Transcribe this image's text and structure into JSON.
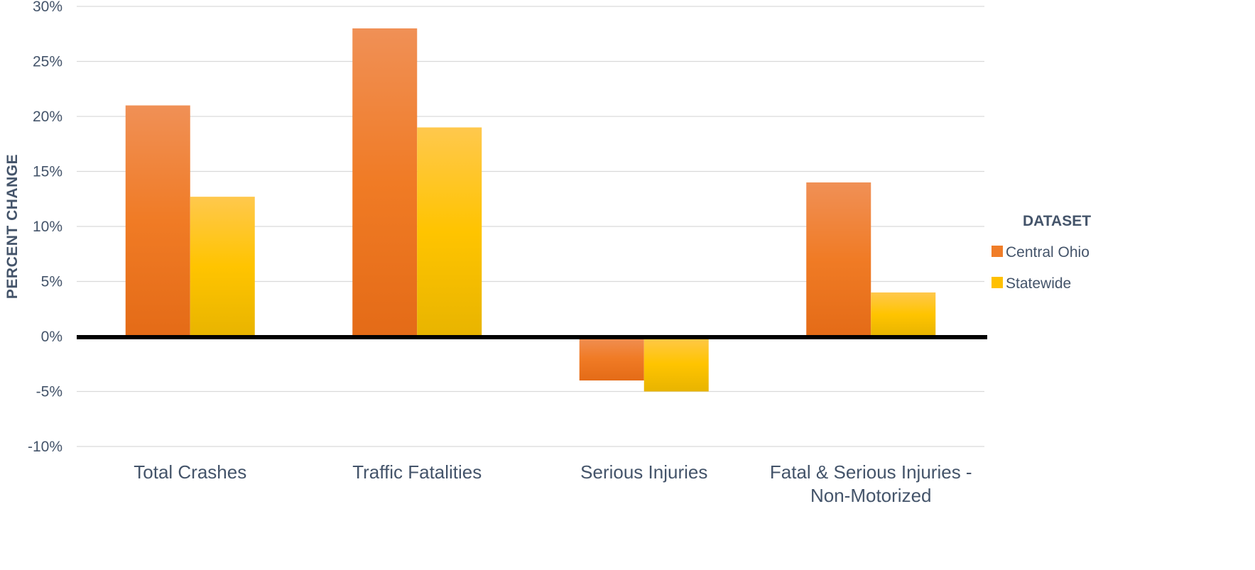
{
  "chart_data": {
    "type": "bar",
    "title": "",
    "xlabel": "",
    "ylabel": "PERCENT CHANGE",
    "ylim": [
      -10,
      30
    ],
    "y_ticks": [
      30,
      25,
      20,
      15,
      10,
      5,
      0,
      -5,
      -10
    ],
    "y_tick_labels": [
      "30%",
      "25%",
      "20%",
      "15%",
      "10%",
      "5%",
      "0%",
      "-5%",
      "-10%"
    ],
    "categories": [
      [
        "Total Crashes"
      ],
      [
        "Traffic Fatalities"
      ],
      [
        "Serious Injuries"
      ],
      [
        "Fatal & Serious Injuries -",
        "Non-Motorized"
      ]
    ],
    "series": [
      {
        "name": "Central Ohio",
        "values": [
          21,
          28,
          -4,
          14
        ],
        "color": "#f07d28"
      },
      {
        "name": "Statewide",
        "values": [
          12.7,
          19,
          -5,
          4
        ],
        "color": "#ffc000"
      }
    ],
    "legend": {
      "title": "DATASET",
      "position": "right"
    },
    "grid": true
  }
}
